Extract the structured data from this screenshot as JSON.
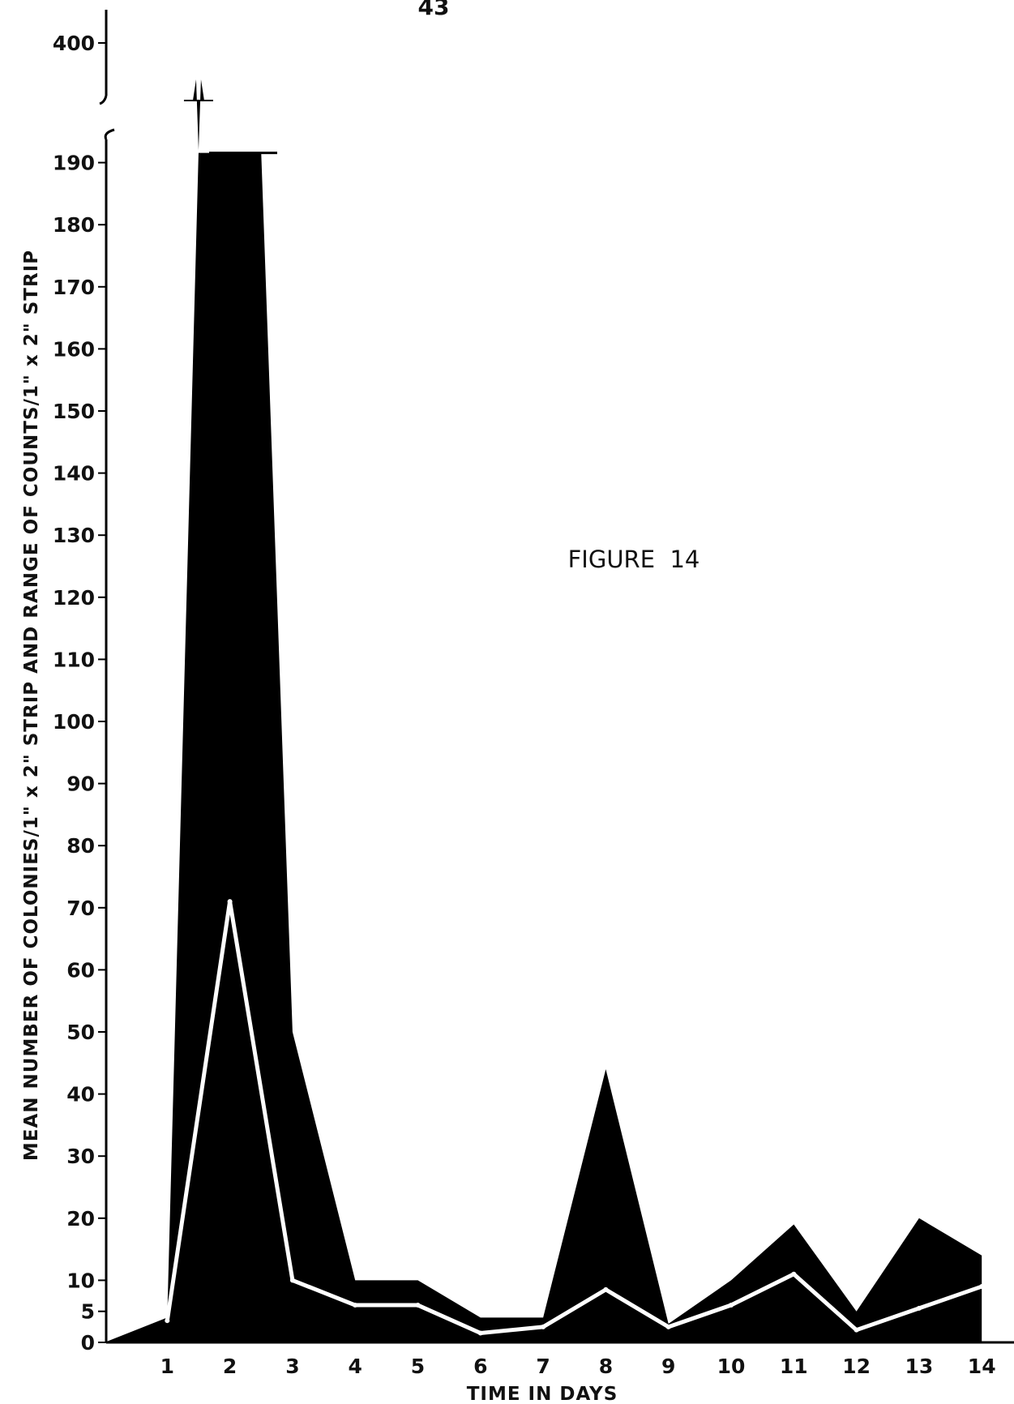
{
  "page_number": "43",
  "figure_label": "FIGURE  14",
  "chart_data": {
    "type": "area",
    "title": "",
    "xlabel": "TIME IN DAYS",
    "ylabel": "MEAN NUMBER OF COLONIES/1\" x 2\" STRIP AND RANGE OF COUNTS/1\" x 2\" STRIP",
    "x_ticks": [
      "1",
      "2",
      "3",
      "4",
      "5",
      "6",
      "7",
      "8",
      "9",
      "10",
      "11",
      "12",
      "13",
      "14"
    ],
    "y_ticks": [
      "0",
      "5",
      "10",
      "20",
      "30",
      "40",
      "50",
      "60",
      "70",
      "80",
      "90",
      "100",
      "110",
      "120",
      "130",
      "140",
      "150",
      "160",
      "170",
      "180",
      "190"
    ],
    "y_break_ticks": [
      "400"
    ],
    "ylim": [
      0,
      190
    ],
    "y_axis_break": {
      "lower_max": 190,
      "upper_value": 400
    },
    "series": [
      {
        "kind": "range",
        "x": [
          1,
          1.5,
          2,
          2.5,
          3,
          4,
          5,
          6,
          7,
          8,
          9,
          10,
          11,
          12,
          13,
          14
        ],
        "upper": [
          4,
          192,
          400,
          192,
          50,
          10,
          10,
          4,
          4,
          44,
          3,
          10,
          19,
          5,
          20,
          14
        ],
        "lower": [
          4,
          0,
          0,
          0,
          0,
          0,
          0,
          0,
          0,
          0,
          0,
          0,
          0,
          0,
          0,
          0
        ]
      },
      {
        "kind": "mean",
        "x": [
          1,
          2,
          3,
          4,
          5,
          6,
          7,
          8,
          9,
          10,
          11,
          12,
          13,
          14
        ],
        "values": [
          3.5,
          71,
          10,
          6,
          6,
          1.5,
          2.5,
          8.5,
          2.5,
          6,
          11,
          2,
          5.5,
          9
        ]
      }
    ],
    "lead_in": {
      "x": 0,
      "y": 0
    },
    "grid": false,
    "legend": "none",
    "colors": {
      "range_fill": "#000000",
      "mean_line": "#ffffff",
      "axis": "#000000"
    }
  }
}
